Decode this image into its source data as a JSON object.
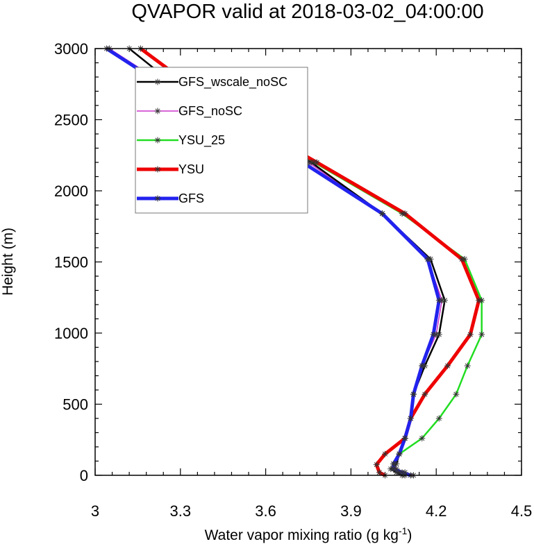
{
  "chart_data": {
    "type": "line",
    "title": "QVAPOR valid at 2018-03-02_04:00:00",
    "xlabel": "Water vapor mixing ratio (g kg",
    "xlabel_superscript": "-1",
    "xlabel_suffix": ")",
    "ylabel": "Height (m)",
    "xlim": [
      3.0,
      4.5
    ],
    "ylim": [
      0,
      3000
    ],
    "xticks": [
      "3",
      "3.3",
      "3.6",
      "3.9",
      "4.2",
      "4.5"
    ],
    "yticks": [
      "0",
      "500",
      "1000",
      "1500",
      "2000",
      "2500",
      "3000"
    ],
    "xtick_values": [
      3.0,
      3.3,
      3.6,
      3.9,
      4.2,
      4.5
    ],
    "ytick_values": [
      0,
      500,
      1000,
      1500,
      2000,
      2500,
      3000
    ],
    "legend_position": "upper-left",
    "marker": "asterisk",
    "series": [
      {
        "name": "GFS_wscale_noSC",
        "color": "#000000",
        "width": 2.5,
        "points": [
          [
            4.08,
            0
          ],
          [
            4.06,
            20
          ],
          [
            4.04,
            45
          ],
          [
            4.06,
            80
          ],
          [
            4.07,
            150
          ],
          [
            4.09,
            260
          ],
          [
            4.11,
            400
          ],
          [
            4.12,
            570
          ],
          [
            4.16,
            770
          ],
          [
            4.21,
            990
          ],
          [
            4.23,
            1230
          ],
          [
            4.18,
            1520
          ],
          [
            4.01,
            1840
          ],
          [
            3.76,
            2200
          ],
          [
            3.37,
            2600
          ],
          [
            3.12,
            3000
          ]
        ]
      },
      {
        "name": "GFS_noSC",
        "color": "#cc33cc",
        "width": 1.5,
        "points": [
          [
            4.12,
            0
          ],
          [
            4.09,
            20
          ],
          [
            4.06,
            45
          ],
          [
            4.05,
            80
          ],
          [
            4.07,
            150
          ],
          [
            4.09,
            260
          ],
          [
            4.11,
            400
          ],
          [
            4.12,
            570
          ],
          [
            4.15,
            770
          ],
          [
            4.2,
            990
          ],
          [
            4.22,
            1230
          ],
          [
            4.17,
            1520
          ],
          [
            4.01,
            1840
          ],
          [
            3.75,
            2200
          ],
          [
            3.36,
            2600
          ],
          [
            3.05,
            3000
          ]
        ]
      },
      {
        "name": "YSU_25",
        "color": "#22dd22",
        "width": 2.5,
        "points": [
          [
            4.09,
            0
          ],
          [
            4.07,
            20
          ],
          [
            4.05,
            45
          ],
          [
            4.05,
            80
          ],
          [
            4.07,
            150
          ],
          [
            4.15,
            260
          ],
          [
            4.21,
            400
          ],
          [
            4.27,
            570
          ],
          [
            4.31,
            770
          ],
          [
            4.36,
            990
          ],
          [
            4.36,
            1230
          ],
          [
            4.3,
            1520
          ],
          [
            4.08,
            1840
          ],
          [
            3.77,
            2200
          ],
          [
            3.43,
            2600
          ],
          [
            3.16,
            3000
          ]
        ]
      },
      {
        "name": "YSU",
        "color": "#ee0000",
        "width": 5,
        "points": [
          [
            4.02,
            0
          ],
          [
            4.0,
            20
          ],
          [
            3.99,
            75
          ],
          [
            4.02,
            150
          ],
          [
            4.09,
            260
          ],
          [
            4.11,
            400
          ],
          [
            4.16,
            570
          ],
          [
            4.24,
            770
          ],
          [
            4.32,
            990
          ],
          [
            4.35,
            1230
          ],
          [
            4.29,
            1520
          ],
          [
            4.09,
            1840
          ],
          [
            3.78,
            2200
          ],
          [
            3.43,
            2600
          ],
          [
            3.16,
            3000
          ]
        ]
      },
      {
        "name": "GFS",
        "color": "#2222ee",
        "width": 5,
        "points": [
          [
            4.11,
            0
          ],
          [
            4.08,
            20
          ],
          [
            4.05,
            45
          ],
          [
            4.05,
            80
          ],
          [
            4.07,
            150
          ],
          [
            4.09,
            260
          ],
          [
            4.11,
            400
          ],
          [
            4.12,
            570
          ],
          [
            4.15,
            770
          ],
          [
            4.19,
            990
          ],
          [
            4.21,
            1230
          ],
          [
            4.17,
            1520
          ],
          [
            4.01,
            1840
          ],
          [
            3.73,
            2200
          ],
          [
            3.35,
            2600
          ],
          [
            3.04,
            3000
          ]
        ]
      }
    ]
  }
}
